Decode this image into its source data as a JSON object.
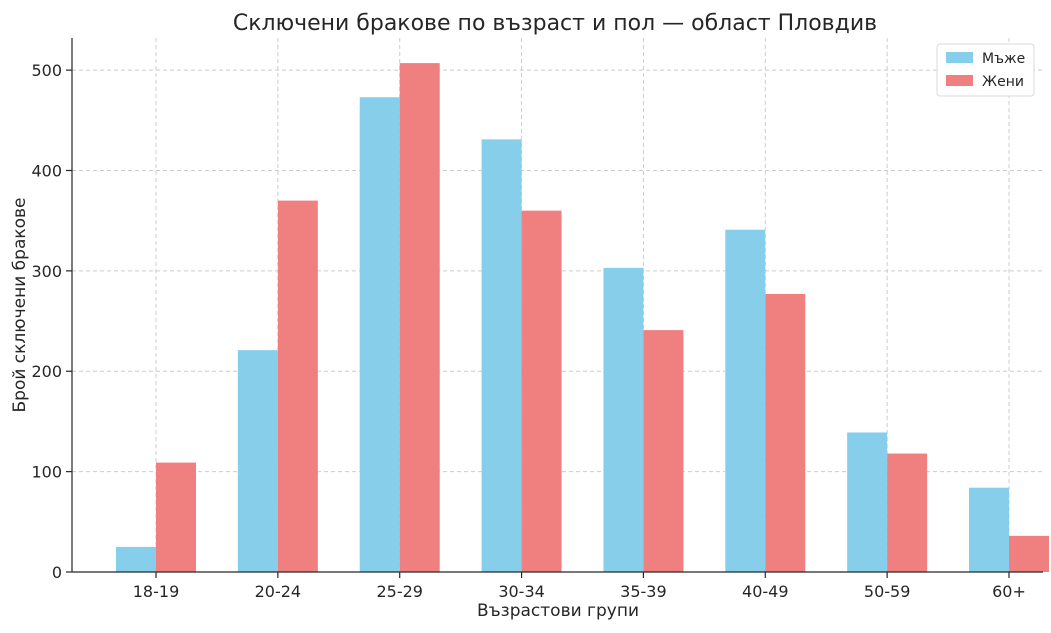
{
  "chart_data": {
    "type": "bar",
    "title": "Сключени бракове по възраст и пол — област Пловдив",
    "xlabel": "Възрастови групи",
    "ylabel": "Брой сключени бракове",
    "categories": [
      "18-19",
      "20-24",
      "25-29",
      "30-34",
      "35-39",
      "40-49",
      "50-59",
      "60+"
    ],
    "series": [
      {
        "name": "Мъже",
        "color": "#87CEEB",
        "values": [
          25,
          221,
          473,
          431,
          303,
          341,
          139,
          84
        ]
      },
      {
        "name": "Жени",
        "color": "#F08080",
        "values": [
          109,
          370,
          507,
          360,
          241,
          277,
          118,
          36
        ]
      }
    ],
    "ylim": [
      0,
      532
    ],
    "yticks": [
      0,
      100,
      200,
      300,
      400,
      500
    ],
    "grid": true,
    "legend_position": "top-right"
  }
}
